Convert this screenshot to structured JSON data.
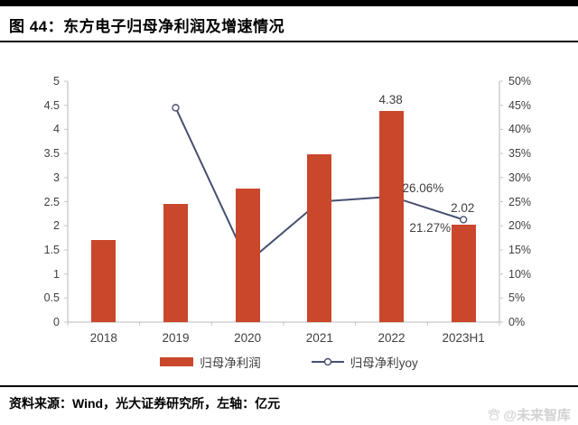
{
  "header": {
    "title": "图 44：东方电子归母净利润及增速情况"
  },
  "footer": {
    "source": "资料来源：Wind，光大证券研究所，左轴：亿元"
  },
  "watermark": {
    "text": "@未来智库",
    "color": "#d2d2d2",
    "icon": "paw-icon"
  },
  "colors": {
    "bar": "#c9472b",
    "line": "#474f71",
    "axis": "#c6c6c6",
    "tick_text": "#404040"
  },
  "chart_data": {
    "type": "bar",
    "subtype": "bar+line-combo",
    "title": "东方电子归母净利润及增速情况",
    "categories": [
      "2018",
      "2019",
      "2020",
      "2021",
      "2022",
      "2023H1"
    ],
    "series": [
      {
        "name": "归母净利润",
        "type": "bar",
        "axis": "left",
        "color": "#c9472b",
        "values": [
          1.7,
          2.45,
          2.77,
          3.48,
          4.38,
          2.02
        ],
        "labels": [
          null,
          null,
          null,
          null,
          "4.38",
          "2.02"
        ]
      },
      {
        "name": "归母净利yoy",
        "type": "line",
        "axis": "right",
        "color": "#474f71",
        "marker": "open-circle",
        "values": [
          null,
          44.5,
          12.4,
          25.0,
          26.06,
          21.27
        ],
        "labels": [
          null,
          null,
          null,
          null,
          "26.06%",
          "21.27%"
        ],
        "label_placement": [
          null,
          null,
          null,
          null,
          "right",
          "below-left"
        ]
      }
    ],
    "left_axis": {
      "label": "亿元",
      "min": 0,
      "max": 5,
      "ticks": [
        "5",
        "4.5",
        "4",
        "3.5",
        "3",
        "2.5",
        "2",
        "1.5",
        "1",
        "0.5",
        "0"
      ]
    },
    "right_axis": {
      "min": 0,
      "max": 50,
      "ticks": [
        "50%",
        "45%",
        "40%",
        "35%",
        "30%",
        "25%",
        "20%",
        "15%",
        "10%",
        "5%",
        "0%"
      ]
    },
    "grid": false,
    "legend_position": "bottom"
  }
}
